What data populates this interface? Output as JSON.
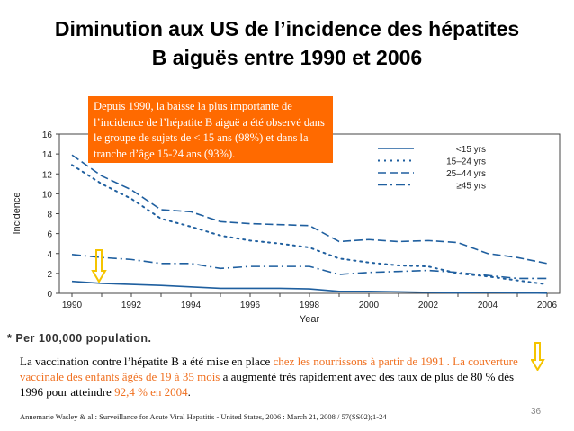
{
  "title_line1": "Diminution aux US de l’incidence des hépatites",
  "title_line2": "B aiguës entre 1990 et 2006",
  "callout": "Depuis 1990, la baisse la plus importante de l’incidence de l’hépatite B aiguë a été observé dans le groupe de sujets de < 15 ans (98%) et dans la tranche d’âge 15-24 ans (93%).",
  "callout_color": "#ff6a00",
  "footnote": "* Per 100,000 population.",
  "paragraph": {
    "p1": "La vaccination contre l’hépatite B a été mise en place ",
    "h1": "chez les nourrissons à partir de 1991 . La couverture vaccinale des enfants âgés de 19 à 35 mois",
    "p2": " a augmenté très rapidement avec des taux de plus de 80 % dès 1996 pour atteindre ",
    "h2": "92,4 % en 2004",
    "p3": "."
  },
  "highlight_color": "#f07020",
  "citation": "Annemarie Wasley & al : Surveillance for Acute Viral Hepatitis - United States, 2006 : March 21, 2008 / 57(SS02);1-24",
  "page_number": "36",
  "annotation_icons": [
    "down-arrow-icon",
    "down-arrow-icon"
  ],
  "chart_data": {
    "type": "line",
    "xlabel": "Year",
    "ylabel": "Incidence",
    "x": [
      1990,
      1991,
      1992,
      1993,
      1994,
      1995,
      1996,
      1997,
      1998,
      1999,
      2000,
      2001,
      2002,
      2003,
      2004,
      2005,
      2006
    ],
    "xticks": [
      "1990",
      "1992",
      "1994",
      "1996",
      "1998",
      "2000",
      "2002",
      "2004",
      "2006"
    ],
    "yticks": [
      "0",
      "2",
      "4",
      "6",
      "8",
      "10",
      "12",
      "14",
      "16"
    ],
    "xlim": [
      1990,
      2006
    ],
    "ylim": [
      0,
      16
    ],
    "grid": false,
    "legend_position": "top-right",
    "line_color": "#1f5f9f",
    "series": [
      {
        "name": "<15 yrs",
        "style": "solid",
        "values": [
          1.2,
          1.0,
          0.9,
          0.8,
          0.65,
          0.5,
          0.5,
          0.5,
          0.45,
          0.2,
          0.2,
          0.15,
          0.1,
          0.05,
          0.1,
          0.05,
          0.02
        ]
      },
      {
        "name": "15–24 yrs",
        "style": "dotted",
        "values": [
          12.9,
          11.0,
          9.5,
          7.5,
          6.7,
          5.8,
          5.3,
          5.0,
          4.6,
          3.5,
          3.1,
          2.8,
          2.7,
          2.0,
          1.7,
          1.3,
          0.9
        ]
      },
      {
        "name": "25–44 yrs",
        "style": "dashed",
        "values": [
          13.9,
          11.8,
          10.4,
          8.4,
          8.2,
          7.2,
          7.0,
          6.9,
          6.8,
          5.2,
          5.4,
          5.2,
          5.3,
          5.1,
          4.0,
          3.6,
          3.0
        ]
      },
      {
        "name": "≥45 yrs",
        "style": "dashdot",
        "values": [
          3.9,
          3.6,
          3.4,
          3.0,
          3.0,
          2.5,
          2.7,
          2.7,
          2.7,
          1.9,
          2.1,
          2.2,
          2.3,
          2.1,
          1.8,
          1.5,
          1.5
        ]
      }
    ]
  }
}
